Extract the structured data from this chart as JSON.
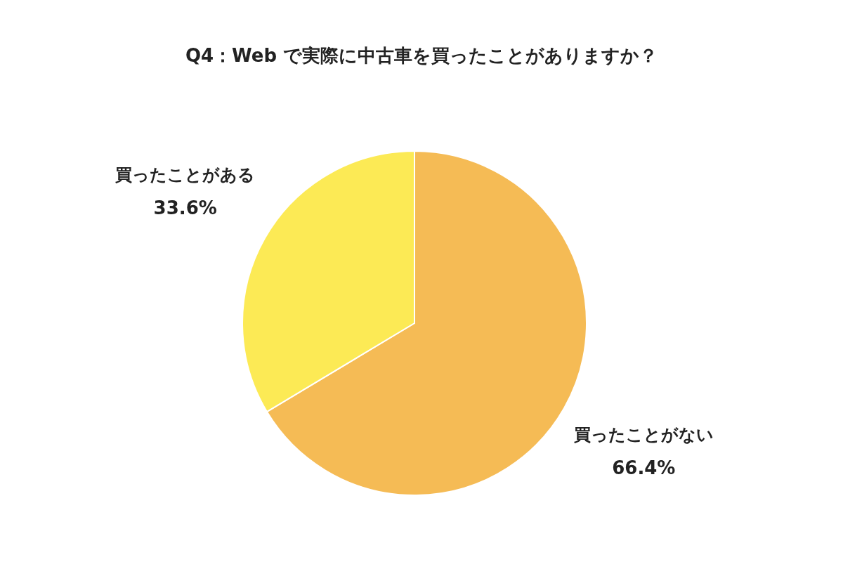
{
  "chart_data": {
    "type": "pie",
    "title": "Q4：Web で実際に中古車を買ったことがありますか？",
    "categories": [
      "買ったことがない",
      "買ったことがある"
    ],
    "values": [
      66.4,
      33.6
    ],
    "colors": [
      "#f5bb55",
      "#fcea55"
    ],
    "value_labels": [
      "66.4%",
      "33.6%"
    ]
  }
}
